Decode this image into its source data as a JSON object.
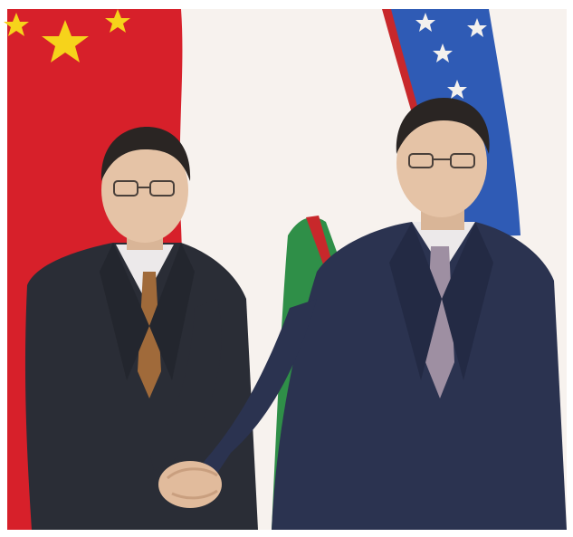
{
  "photo": {
    "alt_subject": "",
    "palette": {
      "china_red": "#d7202a",
      "china_gold": "#f6d31b",
      "uzbek_blue": "#2f5bb5",
      "uzbek_white": "#f4f1ee",
      "uzbek_red_stripe": "#c8282b",
      "uzbek_green": "#2f8f48",
      "backdrop": "#f7f2ee",
      "suit_left": "#2a2d36",
      "suit_right": "#2b3350",
      "shirt": "#ece9ea",
      "tie_left": "#a06a3a",
      "tie_right": "#9e8fa2",
      "skin": "#e5c3a6",
      "hair": "#2a2523"
    }
  }
}
